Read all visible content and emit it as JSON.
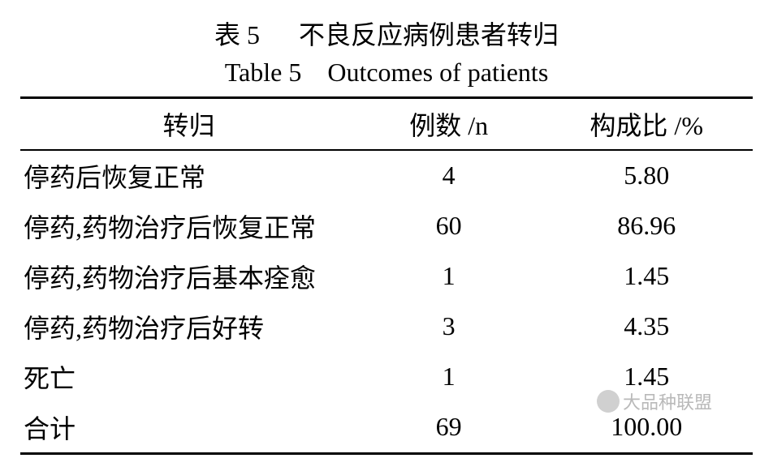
{
  "caption": {
    "zh_label": "表 5",
    "zh_title": "不良反应病例患者转归",
    "en_label": "Table 5",
    "en_title": "Outcomes of patients"
  },
  "table": {
    "columns": [
      {
        "key": "outcome",
        "label": "转归"
      },
      {
        "key": "n",
        "label": "例数 /n"
      },
      {
        "key": "pct",
        "label": "构成比 /%"
      }
    ],
    "rows": [
      {
        "outcome": "停药后恢复正常",
        "n": "4",
        "pct": "5.80"
      },
      {
        "outcome": "停药,药物治疗后恢复正常",
        "n": "60",
        "pct": "86.96"
      },
      {
        "outcome": "停药,药物治疗后基本痊愈",
        "n": "1",
        "pct": "1.45"
      },
      {
        "outcome": "停药,药物治疗后好转",
        "n": "3",
        "pct": "4.35"
      },
      {
        "outcome": "死亡",
        "n": "1",
        "pct": "1.45"
      },
      {
        "outcome": "合计",
        "n": "69",
        "pct": "100.00"
      }
    ],
    "border_color": "#000000",
    "background_color": "#ffffff",
    "font_size_pt": 24
  },
  "watermark": {
    "text": "大品种联盟",
    "color": "#b9b9b9"
  }
}
